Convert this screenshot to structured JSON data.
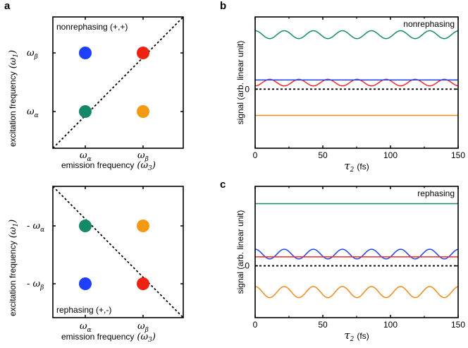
{
  "colors": {
    "blue": "#1f3fff",
    "red": "#ee2211",
    "green": "#14896a",
    "orange": "#f39a12",
    "teal": "#168a6a",
    "plot_orange": "#f08a1a",
    "plot_blue": "#2244ee",
    "plot_red": "#ee2a2a"
  },
  "panel_a": {
    "letter": "a",
    "top": {
      "label": "nonrephasing (+,+)",
      "xlabel_text": "emission frequency",
      "xlabel_sym": "(ω",
      "xlabel_sub": "3",
      "xlabel_close": ")",
      "ylabel_text": "excitation frequency",
      "ylabel_sym": "(ω",
      "ylabel_sub": "1",
      "ylabel_close": ")",
      "xticks": [
        {
          "sym": "ω",
          "sub": "α"
        },
        {
          "sym": "ω",
          "sub": "β"
        }
      ],
      "yticks": [
        {
          "sym": "ω",
          "sub": "β"
        },
        {
          "sym": "ω",
          "sub": "α"
        }
      ],
      "dots": [
        {
          "name": "blue",
          "color": "#1f3fff"
        },
        {
          "name": "red",
          "color": "#ee2211"
        },
        {
          "name": "green",
          "color": "#14896a"
        },
        {
          "name": "orange",
          "color": "#f39a12"
        }
      ]
    },
    "bottom": {
      "label": "rephasing (+,-)",
      "xlabel_text": "emission frequency",
      "xlabel_sym": "(ω",
      "xlabel_sub": "3",
      "xlabel_close": ")",
      "ylabel_text": "excitation frequency",
      "ylabel_sym": "(ω",
      "ylabel_sub": "1",
      "ylabel_close": ")",
      "xticks": [
        {
          "sym": "ω",
          "sub": "α"
        },
        {
          "sym": "ω",
          "sub": "β"
        }
      ],
      "yticks": [
        {
          "sym": "- ω",
          "sub": "α"
        },
        {
          "sym": "- ω",
          "sub": "β"
        }
      ]
    }
  },
  "chart_data": [
    {
      "type": "line",
      "panel": "b",
      "title": "nonrephasing",
      "xlabel_sym": "τ",
      "xlabel_sub": "2",
      "xlabel_unit": "(fs)",
      "ylabel": "signal (arb. linear unit)",
      "xlim": [
        0,
        150
      ],
      "ylim": [
        -0.9,
        1.1
      ],
      "xticks": [
        "0",
        "50",
        "100",
        "150"
      ],
      "yticks": [
        "0"
      ],
      "period_fs": 21.5,
      "series": [
        {
          "name": "green",
          "color": "#168a6a",
          "mean": 0.83,
          "amplitude": 0.06,
          "phase": 0
        },
        {
          "name": "red",
          "color": "#ee2a2a",
          "mean": 0.1,
          "amplitude": 0.05,
          "phase": 3.14
        },
        {
          "name": "blue",
          "color": "#2244ee",
          "mean": 0.14,
          "amplitude": 0.0,
          "phase": 0
        },
        {
          "name": "baseline",
          "color": "#000000",
          "mean": 0.0,
          "amplitude": 0.0,
          "phase": 0,
          "dashed": true
        },
        {
          "name": "orange",
          "color": "#f08a1a",
          "mean": -0.4,
          "amplitude": 0.0,
          "phase": 0
        }
      ]
    },
    {
      "type": "line",
      "panel": "c",
      "title": "rephasing",
      "xlabel_sym": "τ",
      "xlabel_sub": "2",
      "xlabel_unit": "(fs)",
      "ylabel": "signal (arb. linear unit)",
      "xlim": [
        0,
        150
      ],
      "ylim": [
        -0.75,
        1.15
      ],
      "xticks": [
        "0",
        "50",
        "100",
        "150"
      ],
      "yticks": [
        "0"
      ],
      "period_fs": 21.5,
      "series": [
        {
          "name": "green",
          "color": "#168a6a",
          "mean": 0.9,
          "amplitude": 0.0,
          "phase": 0
        },
        {
          "name": "blue",
          "color": "#2244ee",
          "mean": 0.17,
          "amplitude": 0.07,
          "phase": 0
        },
        {
          "name": "red",
          "color": "#ee2a2a",
          "mean": 0.13,
          "amplitude": 0.0,
          "phase": 0
        },
        {
          "name": "baseline",
          "color": "#000000",
          "mean": 0.0,
          "amplitude": 0.0,
          "phase": 0,
          "dashed": true
        },
        {
          "name": "orange",
          "color": "#f08a1a",
          "mean": -0.38,
          "amplitude": 0.08,
          "phase": 0
        }
      ]
    }
  ]
}
